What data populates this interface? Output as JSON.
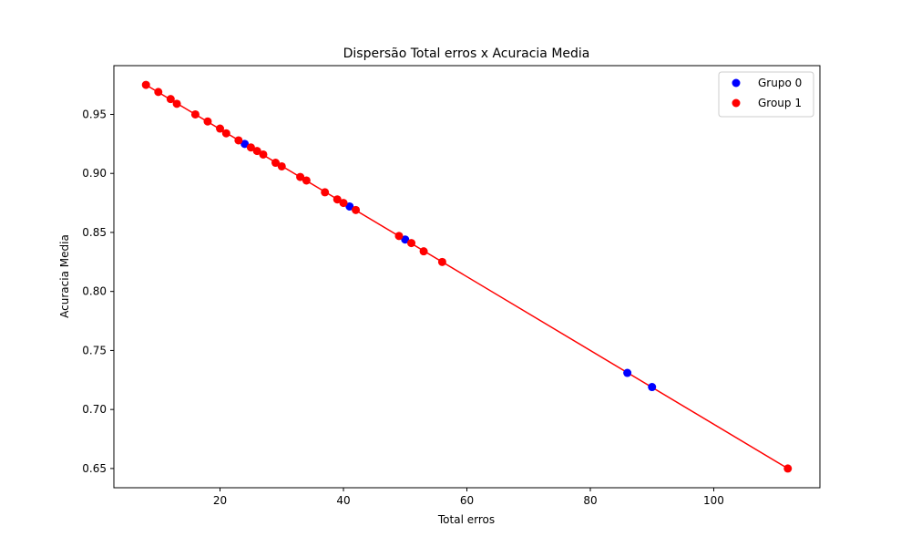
{
  "chart_data": {
    "type": "scatter",
    "title": "Dispersão Total erros x Acuracia Media",
    "xlabel": "Total erros",
    "ylabel": "Acuracia Media",
    "xlim": [
      2.8,
      117.2
    ],
    "ylim": [
      0.6337,
      0.9913
    ],
    "xticks": [
      20,
      40,
      60,
      80,
      100
    ],
    "yticks": [
      0.65,
      0.7,
      0.75,
      0.8,
      0.85,
      0.9,
      0.95
    ],
    "grid": false,
    "legend_position": "top-right",
    "series": [
      {
        "name": "Grupo 0",
        "color": "#0000ff",
        "x": [
          24,
          41,
          50,
          86,
          90
        ],
        "y": [
          0.925,
          0.872,
          0.844,
          0.731,
          0.719
        ]
      },
      {
        "name": "Group 1",
        "color": "#ff0000",
        "x": [
          8,
          10,
          12,
          13,
          16,
          18,
          20,
          21,
          23,
          25,
          26,
          27,
          29,
          30,
          33,
          34,
          37,
          39,
          40,
          42,
          49,
          51,
          53,
          56,
          112
        ],
        "y": [
          0.975,
          0.969,
          0.963,
          0.959,
          0.95,
          0.944,
          0.938,
          0.934,
          0.928,
          0.922,
          0.919,
          0.916,
          0.909,
          0.906,
          0.897,
          0.894,
          0.884,
          0.878,
          0.875,
          0.869,
          0.847,
          0.841,
          0.834,
          0.825,
          0.65
        ]
      }
    ],
    "trend_line": {
      "color": "#ff0000",
      "x": [
        8,
        112
      ],
      "y": [
        0.975,
        0.65
      ]
    }
  }
}
